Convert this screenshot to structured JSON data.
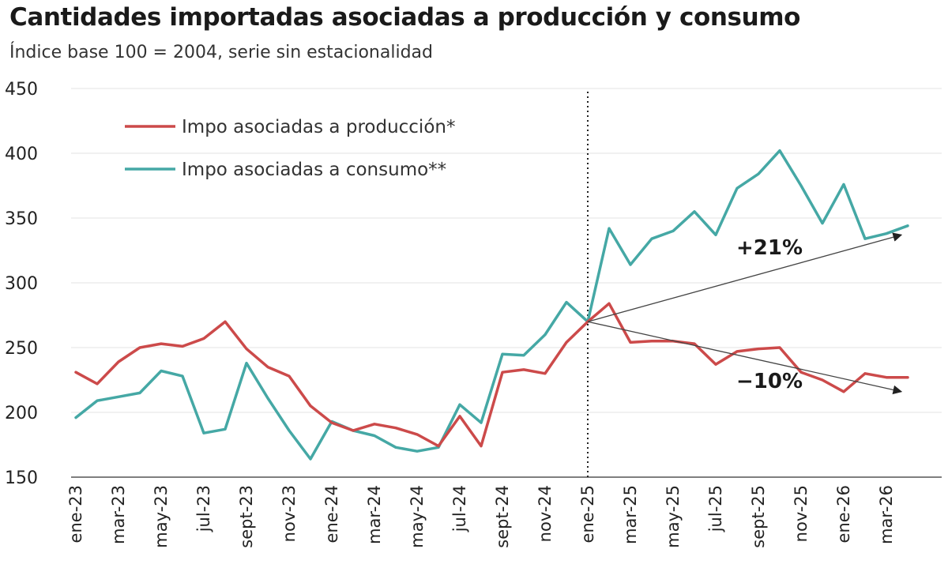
{
  "title": "Cantidades importadas asociadas a producción y consumo",
  "subtitle": "Índice base 100 = 2004, serie sin estacionalidad",
  "chart_data": {
    "type": "line",
    "ylim": [
      150,
      450
    ],
    "yticks": [
      "150",
      "200",
      "250",
      "300",
      "350",
      "400",
      "450"
    ],
    "grid": true,
    "legend_position": "top-left",
    "x_labels": [
      "ene-23",
      "mar-23",
      "may-23",
      "jul-23",
      "sept-23",
      "nov-23",
      "ene-24",
      "mar-24",
      "may-24",
      "jul-24",
      "sept-24",
      "nov-24",
      "ene-25",
      "mar-25",
      "may-25",
      "jul-25",
      "sept-25",
      "nov-25",
      "ene-26",
      "mar-26"
    ],
    "x": [
      "ene-23",
      "feb-23",
      "mar-23",
      "abr-23",
      "may-23",
      "jun-23",
      "jul-23",
      "ago-23",
      "sept-23",
      "oct-23",
      "nov-23",
      "dic-23",
      "ene-24",
      "feb-24",
      "mar-24",
      "abr-24",
      "may-24",
      "jun-24",
      "jul-24",
      "ago-24",
      "sept-24",
      "oct-24",
      "nov-24",
      "dic-24",
      "ene-25",
      "feb-25",
      "mar-25",
      "abr-25",
      "may-25",
      "jun-25",
      "jul-25",
      "ago-25",
      "sept-25",
      "oct-25",
      "nov-25",
      "dic-25",
      "ene-26",
      "feb-26",
      "mar-26",
      "abr-26"
    ],
    "series": [
      {
        "name": "Impo asociadas a producción*",
        "color": "#cc4a4a",
        "values": [
          231,
          222,
          239,
          250,
          253,
          251,
          257,
          270,
          249,
          235,
          228,
          205,
          192,
          186,
          191,
          188,
          183,
          174,
          197,
          174,
          231,
          233,
          230,
          254,
          270,
          284,
          254,
          255,
          255,
          253,
          237,
          247,
          249,
          250,
          231,
          225,
          216,
          230,
          227,
          227
        ]
      },
      {
        "name": "Impo asociadas a consumo**",
        "color": "#45a8a5",
        "values": [
          196,
          209,
          212,
          215,
          232,
          228,
          184,
          187,
          238,
          211,
          186,
          164,
          193,
          186,
          182,
          173,
          170,
          173,
          206,
          192,
          245,
          244,
          260,
          285,
          270,
          342,
          314,
          334,
          340,
          355,
          337,
          373,
          384,
          402,
          375,
          346,
          376,
          334,
          338,
          344
        ]
      }
    ],
    "vline_at": "ene-25",
    "annotations": [
      {
        "text": "+21%",
        "from": [
          "ene-25",
          270
        ],
        "to": [
          "abr-26",
          337
        ],
        "label_at": [
          "jul-25",
          322
        ]
      },
      {
        "text": "−10%",
        "from": [
          "ene-25",
          270
        ],
        "to": [
          "abr-26",
          216
        ],
        "label_at": [
          "jul-25",
          219
        ]
      }
    ]
  }
}
